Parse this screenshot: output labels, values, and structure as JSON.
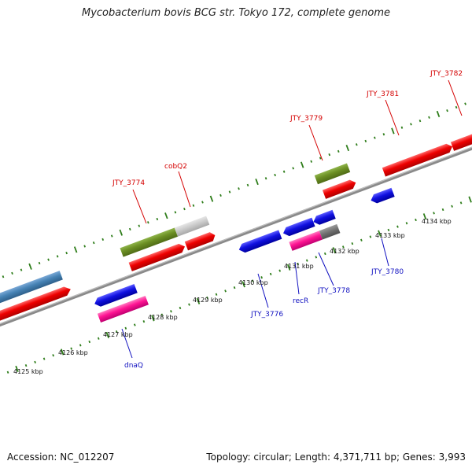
{
  "header": {
    "title": "Mycobacterium bovis BCG str. Tokyo 172, complete genome"
  },
  "footer": {
    "accession": "Accession: NC_012207",
    "topology": "Topology: circular; Length: 4,371,711 bp; Genes: 3,993"
  },
  "colors": {
    "backbone": "#888888",
    "tick": "#2e7d1a",
    "cds_red": "#ee0000",
    "cds_blue": "#1010e0",
    "olive": "#6b8e23",
    "gray_light": "#c8c8c8",
    "gray_dark": "#707070",
    "magenta": "#ff1493",
    "steelblue": "#4682b4",
    "label_red": "#d40000",
    "label_blue": "#1010c0"
  },
  "scale_labels": [
    "4125 kbp",
    "4126 kbp",
    "4127 kbp",
    "4128 kbp",
    "4129 kbp",
    "4130 kbp",
    "4131 kbp",
    "4132 kbp",
    "4133 kbp",
    "4134 kbp"
  ],
  "gene_labels_top": [
    "JTY_3774",
    "cobQ2",
    "JTY_3779",
    "JTY_3781",
    "JTY_3782"
  ],
  "gene_labels_bottom": [
    "dnaQ",
    "JTY_3776",
    "recR",
    "JTY_3778",
    "JTY_3780"
  ]
}
